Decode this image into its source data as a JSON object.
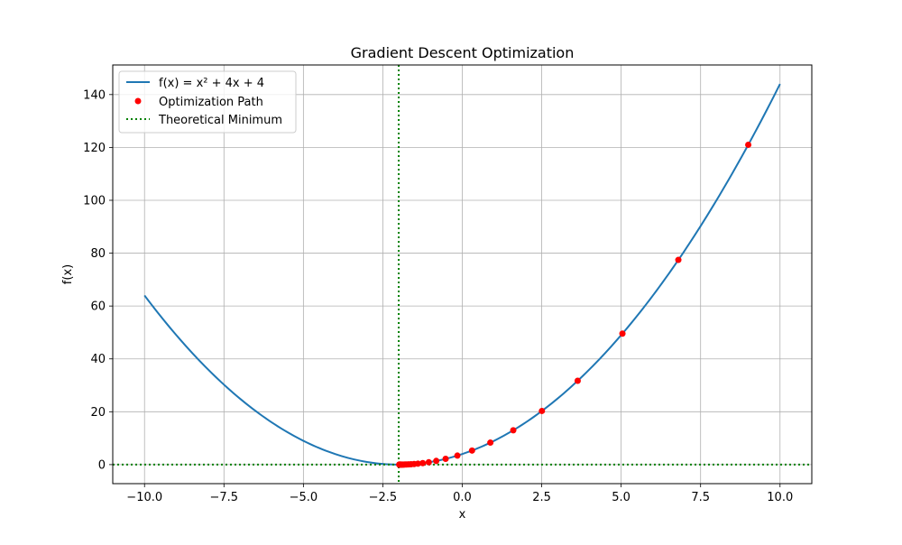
{
  "colors": {
    "curve": "#1f77b4",
    "points": "#ff0000",
    "minimum": "#008000",
    "grid": "#b0b0b0",
    "axes": "#000000",
    "background": "#ffffff"
  },
  "chart_data": {
    "type": "line",
    "title": "Gradient Descent Optimization",
    "xlabel": "x",
    "ylabel": "f(x)",
    "xlim": [
      -11,
      11
    ],
    "ylim": [
      -7.2,
      151.2
    ],
    "xticks": [
      -10.0,
      -7.5,
      -5.0,
      -2.5,
      0.0,
      2.5,
      5.0,
      7.5,
      10.0
    ],
    "xtick_labels": [
      "−10.0",
      "−7.5",
      "−5.0",
      "−2.5",
      "0.0",
      "2.5",
      "5.0",
      "7.5",
      "10.0"
    ],
    "yticks": [
      0,
      20,
      40,
      60,
      80,
      100,
      120,
      140
    ],
    "ytick_labels": [
      "0",
      "20",
      "40",
      "60",
      "80",
      "100",
      "120",
      "140"
    ],
    "grid": true,
    "legend": {
      "placement": "upper-left",
      "entries": [
        {
          "label": "f(x) = x² + 4x + 4",
          "kind": "line"
        },
        {
          "label": "Optimization Path",
          "kind": "scatter"
        },
        {
          "label": "Theoretical Minimum",
          "kind": "dotted"
        }
      ]
    },
    "series": [
      {
        "kind": "function",
        "x_range": [
          -10,
          10
        ],
        "coefficients": [
          1,
          4,
          4
        ]
      },
      {
        "kind": "scatter",
        "x": [
          9.0,
          6.8,
          5.04,
          3.632,
          2.506,
          1.605,
          0.884,
          0.307,
          -0.154,
          -0.524,
          -0.819,
          -1.055,
          -1.244,
          -1.395,
          -1.516,
          -1.613,
          -1.69,
          -1.752,
          -1.802,
          -1.841,
          -1.873,
          -1.899,
          -1.919,
          -1.935,
          -1.948,
          -1.958,
          -1.967,
          -1.973,
          -1.979,
          -1.983
        ],
        "y": [
          121.0,
          77.44,
          49.56,
          31.72,
          20.3,
          12.99,
          8.32,
          5.32,
          3.41,
          2.18,
          1.4,
          0.89,
          0.57,
          0.37,
          0.23,
          0.15,
          0.1,
          0.06,
          0.04,
          0.025,
          0.016,
          0.01,
          0.007,
          0.004,
          0.003,
          0.002,
          0.001,
          0.001,
          0.0005,
          0.0003
        ]
      },
      {
        "kind": "reference-lines",
        "x": -2,
        "y": 0
      }
    ]
  }
}
